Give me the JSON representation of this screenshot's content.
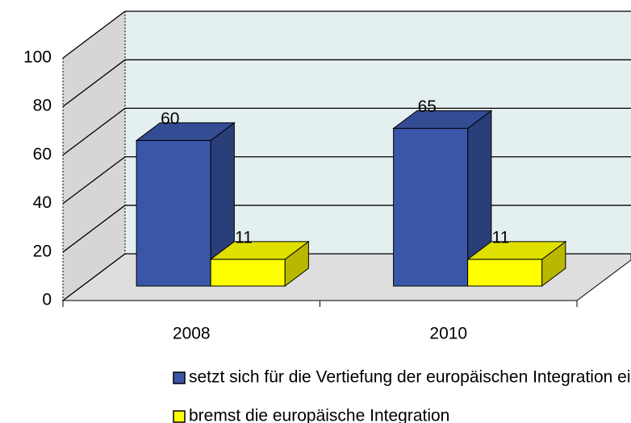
{
  "chart_data": {
    "type": "bar3d",
    "categories": [
      "2008",
      "2010"
    ],
    "series": [
      {
        "name": "setzt sich für die Vertiefung der europäischen Integration ein",
        "color": "#3a56a8",
        "values": [
          60,
          65
        ]
      },
      {
        "name": "bremst die europäische Integration",
        "color": "#ffff00",
        "values": [
          11,
          11
        ]
      }
    ],
    "ylim": [
      0,
      100
    ],
    "yticks": [
      0,
      20,
      40,
      60,
      80,
      100
    ],
    "grid": true
  }
}
